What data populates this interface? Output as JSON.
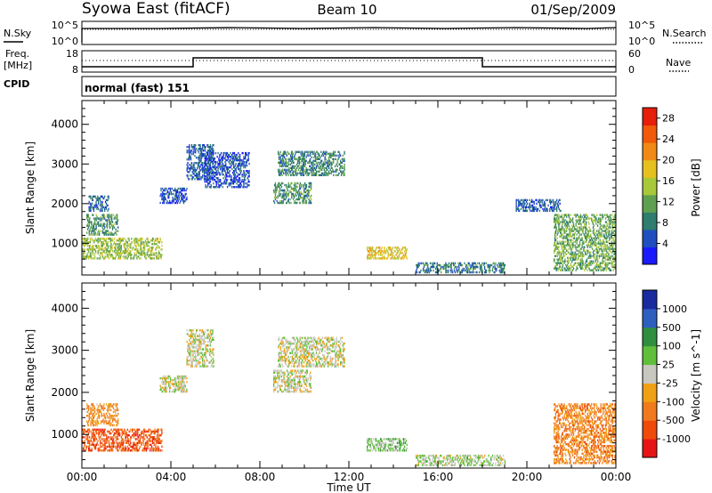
{
  "header": {
    "title": "Syowa East (fitACF)",
    "beam": "Beam 10",
    "date": "01/Sep/2009"
  },
  "sky_panel": {
    "left_label": "N.Sky",
    "right_label": "N.Search",
    "left_ticks": [
      "10^5",
      "10^0"
    ],
    "right_ticks": [
      "10^5",
      "10^0"
    ]
  },
  "freq_panel": {
    "left_label_1": "Freq.",
    "left_label_2": "[MHz]",
    "right_label": "Nave",
    "left_ticks": [
      "18",
      "8"
    ],
    "right_ticks": [
      "60",
      "0"
    ]
  },
  "cpid": {
    "label": "CPID",
    "mode": "normal (fast) 151"
  },
  "colors": {
    "power_scale": [
      "#1a1aff",
      "#1f4fbf",
      "#2e7d6e",
      "#5fa050",
      "#a8c83a",
      "#e6c01e",
      "#f08a14",
      "#f05a0a",
      "#e61e0a"
    ],
    "velocity_scale": [
      "#e61414",
      "#f04a0a",
      "#f07a1e",
      "#f0a014",
      "#c8c8c0",
      "#5fbf3a",
      "#2e8f3e",
      "#2e5fbf",
      "#1a2a9f"
    ]
  },
  "chart_data": [
    {
      "type": "heatmap",
      "title": "Power",
      "ylabel": "Slant Range [km]",
      "xlabel": "",
      "xlim": [
        "00:00",
        "24:00"
      ],
      "ylim": [
        200,
        4600
      ],
      "yticks": [
        "1000",
        "2000",
        "3000",
        "4000"
      ],
      "colorbar": {
        "label": "Power [dB]",
        "ticks": [
          "4",
          "8",
          "12",
          "16",
          "20",
          "24",
          "28"
        ],
        "range": [
          0,
          30
        ]
      },
      "regions": [
        {
          "t": [
            0.2,
            1.6
          ],
          "r": [
            1200,
            1700
          ],
          "v": 10
        },
        {
          "t": [
            0.0,
            3.6
          ],
          "r": [
            600,
            1100
          ],
          "v": 14
        },
        {
          "t": [
            0.3,
            1.2
          ],
          "r": [
            1800,
            2200
          ],
          "v": 6
        },
        {
          "t": [
            3.5,
            4.7
          ],
          "r": [
            2000,
            2400
          ],
          "v": 5
        },
        {
          "t": [
            4.7,
            5.9
          ],
          "r": [
            2600,
            3500
          ],
          "v": 6
        },
        {
          "t": [
            5.5,
            7.5
          ],
          "r": [
            2400,
            3300
          ],
          "v": 5
        },
        {
          "t": [
            8.8,
            11.8
          ],
          "r": [
            2700,
            3300
          ],
          "v": 9
        },
        {
          "t": [
            8.6,
            10.3
          ],
          "r": [
            2000,
            2500
          ],
          "v": 10
        },
        {
          "t": [
            12.8,
            14.6
          ],
          "r": [
            600,
            900
          ],
          "v": 18
        },
        {
          "t": [
            15.0,
            19.0
          ],
          "r": [
            250,
            500
          ],
          "v": 8
        },
        {
          "t": [
            19.5,
            21.5
          ],
          "r": [
            1800,
            2100
          ],
          "v": 6
        },
        {
          "t": [
            21.2,
            24.0
          ],
          "r": [
            300,
            1700
          ],
          "v": 12
        }
      ]
    },
    {
      "type": "heatmap",
      "title": "Velocity",
      "ylabel": "Slant Range [km]",
      "xlabel": "Time UT",
      "xlim": [
        "00:00",
        "24:00"
      ],
      "ylim": [
        200,
        4600
      ],
      "yticks": [
        "1000",
        "2000",
        "3000",
        "4000"
      ],
      "xticks": [
        "00:00",
        "04:00",
        "08:00",
        "12:00",
        "16:00",
        "20:00",
        "00:00"
      ],
      "colorbar": {
        "label": "Velocity [m s^-1]",
        "ticks": [
          "1000",
          "500",
          "100",
          "25",
          "-25",
          "-100",
          "-500",
          "-1000"
        ],
        "range": [
          -1000,
          1000
        ]
      },
      "regions": [
        {
          "t": [
            0.2,
            1.6
          ],
          "r": [
            1200,
            1700
          ],
          "v": -300
        },
        {
          "t": [
            0.0,
            3.6
          ],
          "r": [
            600,
            1100
          ],
          "v": -600
        },
        {
          "t": [
            3.5,
            4.7
          ],
          "r": [
            2000,
            2400
          ],
          "v": 0
        },
        {
          "t": [
            4.7,
            5.9
          ],
          "r": [
            2600,
            3500
          ],
          "v": 0
        },
        {
          "t": [
            8.8,
            11.8
          ],
          "r": [
            2600,
            3300
          ],
          "v": 0
        },
        {
          "t": [
            8.6,
            10.3
          ],
          "r": [
            2000,
            2500
          ],
          "v": 0
        },
        {
          "t": [
            12.8,
            14.6
          ],
          "r": [
            600,
            900
          ],
          "v": 150
        },
        {
          "t": [
            15.0,
            19.0
          ],
          "r": [
            250,
            500
          ],
          "v": 100
        },
        {
          "t": [
            21.2,
            24.0
          ],
          "r": [
            300,
            1700
          ],
          "v": -400
        }
      ]
    }
  ]
}
